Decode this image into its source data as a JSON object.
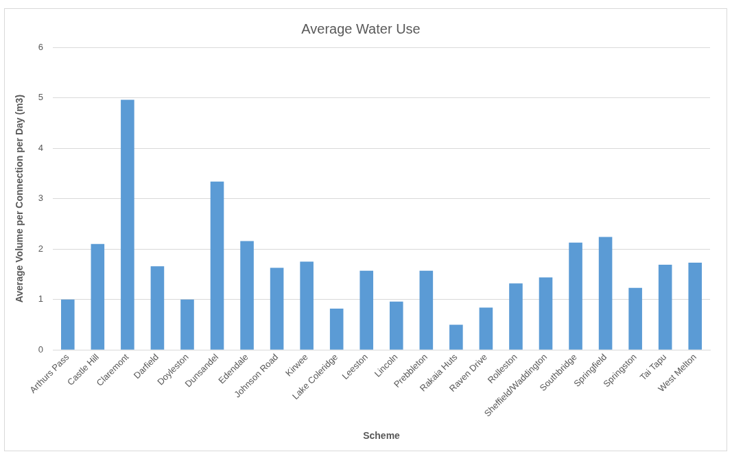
{
  "chart_data": {
    "type": "bar",
    "title": "Average Water Use",
    "xlabel": "Scheme",
    "ylabel": "Average Volume per Connection per Day (m3)",
    "categories": [
      "Arthurs Pass",
      "Castle Hill",
      "Claremont",
      "Darfield",
      "Doyleston",
      "Dunsandel",
      "Edendale",
      "Johnson Road",
      "Kirwee",
      "Lake Coleridge",
      "Leeston",
      "Lincoln",
      "Prebbleton",
      "Rakaia Huts",
      "Raven Drive",
      "Rolleston",
      "Sheffield/Waddington",
      "Southbridge",
      "Springfield",
      "Springston",
      "Tai Tapu",
      "West Melton"
    ],
    "values": [
      1.0,
      2.1,
      4.96,
      1.66,
      1.0,
      3.34,
      2.16,
      1.63,
      1.75,
      0.82,
      1.57,
      0.96,
      1.57,
      0.5,
      0.84,
      1.32,
      1.44,
      2.13,
      2.24,
      1.23,
      1.69,
      1.73
    ],
    "color": "#5b9bd5",
    "ylim": [
      0,
      6
    ],
    "yticks": [
      0,
      1,
      2,
      3,
      4,
      5,
      6
    ],
    "grid": "y",
    "legend": false
  }
}
